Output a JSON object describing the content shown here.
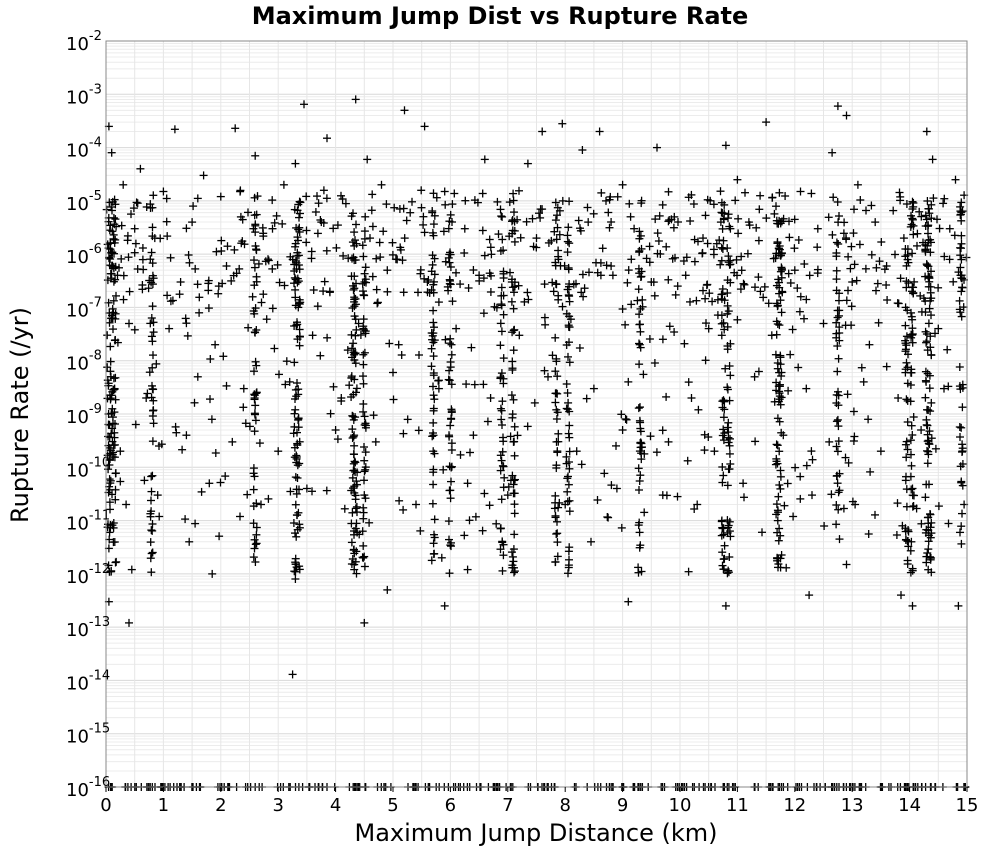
{
  "chart_data": {
    "type": "scatter",
    "title": "Maximum Jump Dist vs Rupture Rate",
    "xlabel": "Maximum Jump Distance (km)",
    "ylabel": "Rupture Rate (/yr)",
    "xlim": [
      0,
      15
    ],
    "ylim": [
      1e-16,
      0.01
    ],
    "yscale": "log",
    "marker": "plus",
    "marker_color": "#000000",
    "grid": true,
    "legend": "none",
    "x_ticks": [
      "0",
      "1",
      "2",
      "3",
      "4",
      "5",
      "6",
      "7",
      "8",
      "9",
      "10",
      "11",
      "12",
      "13",
      "14",
      "15"
    ],
    "y_ticks": [
      {
        "base": "10",
        "exp": "-2"
      },
      {
        "base": "10",
        "exp": "-3"
      },
      {
        "base": "10",
        "exp": "-4"
      },
      {
        "base": "10",
        "exp": "-5"
      },
      {
        "base": "10",
        "exp": "-6"
      },
      {
        "base": "10",
        "exp": "-7"
      },
      {
        "base": "10",
        "exp": "-8"
      },
      {
        "base": "10",
        "exp": "-9"
      },
      {
        "base": "10",
        "exp": "-10"
      },
      {
        "base": "10",
        "exp": "-11"
      },
      {
        "base": "10",
        "exp": "-12"
      },
      {
        "base": "10",
        "exp": "-13"
      },
      {
        "base": "10",
        "exp": "-14"
      },
      {
        "base": "10",
        "exp": "-15"
      },
      {
        "base": "10",
        "exp": "-16"
      }
    ],
    "points": [
      [
        0.05,
        0.00025
      ],
      [
        1.2,
        0.00022
      ],
      [
        2.25,
        0.00023
      ],
      [
        3.45,
        0.00065
      ],
      [
        4.35,
        0.0008
      ],
      [
        5.2,
        0.0005
      ],
      [
        5.55,
        0.00025
      ],
      [
        7.6,
        0.0002
      ],
      [
        7.95,
        0.00028
      ],
      [
        8.6,
        0.0002
      ],
      [
        9.6,
        0.0001
      ],
      [
        11.5,
        0.0003
      ],
      [
        12.75,
        0.0006
      ],
      [
        12.9,
        0.0004
      ],
      [
        14.3,
        0.0002
      ],
      [
        0.1,
        8e-05
      ],
      [
        0.6,
        4e-05
      ],
      [
        1.7,
        3e-05
      ],
      [
        2.6,
        7e-05
      ],
      [
        3.3,
        5e-05
      ],
      [
        3.85,
        0.00015
      ],
      [
        4.55,
        6e-05
      ],
      [
        6.6,
        6e-05
      ],
      [
        7.35,
        5e-05
      ],
      [
        8.3,
        9e-05
      ],
      [
        10.8,
        0.00011
      ],
      [
        12.65,
        8e-05
      ],
      [
        14.4,
        6e-05
      ],
      [
        0.3,
        2e-05
      ],
      [
        1.0,
        1.5e-05
      ],
      [
        2.0,
        1.2e-05
      ],
      [
        3.1,
        2e-05
      ],
      [
        4.8,
        2e-05
      ],
      [
        5.9,
        1.5e-05
      ],
      [
        9.0,
        2e-05
      ],
      [
        11.0,
        2.5e-05
      ],
      [
        12.1,
        1.5e-05
      ],
      [
        13.1,
        2e-05
      ],
      [
        14.8,
        2.5e-05
      ],
      [
        0.5,
        3e-06
      ],
      [
        0.85,
        2e-06
      ],
      [
        1.5,
        4e-06
      ],
      [
        2.35,
        5e-06
      ],
      [
        2.9,
        3e-06
      ],
      [
        3.75,
        4e-06
      ],
      [
        4.6,
        2e-06
      ],
      [
        5.3,
        6e-06
      ],
      [
        6.25,
        3e-06
      ],
      [
        6.9,
        5e-06
      ],
      [
        7.5,
        2e-06
      ],
      [
        8.4,
        4e-06
      ],
      [
        9.2,
        3e-06
      ],
      [
        9.9,
        5e-06
      ],
      [
        10.4,
        2e-06
      ],
      [
        11.2,
        4e-06
      ],
      [
        12.4,
        3e-06
      ],
      [
        13.4,
        4e-06
      ],
      [
        13.9,
        2e-06
      ],
      [
        14.7,
        3e-06
      ],
      [
        0.2,
        4e-07
      ],
      [
        1.3,
        3e-07
      ],
      [
        2.1,
        6e-07
      ],
      [
        3.9,
        2e-07
      ],
      [
        4.9,
        5e-07
      ],
      [
        5.6,
        3e-07
      ],
      [
        6.5,
        4e-07
      ],
      [
        7.8,
        2e-07
      ],
      [
        8.8,
        6e-07
      ],
      [
        9.5,
        3e-07
      ],
      [
        10.1,
        4e-07
      ],
      [
        11.4,
        2e-07
      ],
      [
        12.0,
        5e-07
      ],
      [
        13.0,
        3e-07
      ],
      [
        13.6,
        6e-07
      ],
      [
        14.9,
        2e-07
      ],
      [
        0.4,
        5e-08
      ],
      [
        1.1,
        4e-08
      ],
      [
        1.9,
        2e-08
      ],
      [
        2.8,
        6e-08
      ],
      [
        3.6,
        3e-08
      ],
      [
        4.4,
        5e-08
      ],
      [
        5.1,
        2e-08
      ],
      [
        6.1,
        4e-08
      ],
      [
        7.2,
        3e-08
      ],
      [
        8.1,
        6e-08
      ],
      [
        9.3,
        2e-08
      ],
      [
        10.5,
        4e-08
      ],
      [
        11.6,
        3e-08
      ],
      [
        12.5,
        5e-08
      ],
      [
        13.3,
        2e-08
      ],
      [
        14.5,
        4e-08
      ],
      [
        0.15,
        3e-09
      ],
      [
        0.7,
        2e-09
      ],
      [
        1.6,
        5e-09
      ],
      [
        2.4,
        3e-09
      ],
      [
        3.2,
        4e-09
      ],
      [
        4.1,
        2e-09
      ],
      [
        5.0,
        6e-09
      ],
      [
        5.8,
        3e-09
      ],
      [
        6.7,
        2e-09
      ],
      [
        7.7,
        5e-09
      ],
      [
        8.5,
        3e-09
      ],
      [
        9.1,
        4e-09
      ],
      [
        10.2,
        2e-09
      ],
      [
        11.3,
        5e-09
      ],
      [
        12.2,
        3e-09
      ],
      [
        13.2,
        4e-09
      ],
      [
        13.8,
        2e-09
      ],
      [
        14.6,
        3e-09
      ],
      [
        0.25,
        2e-10
      ],
      [
        1.4,
        4e-10
      ],
      [
        2.2,
        3e-10
      ],
      [
        3.0,
        2e-10
      ],
      [
        4.0,
        5e-10
      ],
      [
        4.7,
        3e-10
      ],
      [
        5.7,
        2e-10
      ],
      [
        6.4,
        4e-10
      ],
      [
        7.1,
        3e-10
      ],
      [
        8.2,
        2e-10
      ],
      [
        9.0,
        5e-10
      ],
      [
        9.8,
        3e-10
      ],
      [
        10.6,
        2e-10
      ],
      [
        11.8,
        4e-10
      ],
      [
        12.6,
        3e-10
      ],
      [
        13.5,
        2e-10
      ],
      [
        14.2,
        5e-10
      ],
      [
        0.35,
        2e-11
      ],
      [
        0.9,
        3e-11
      ],
      [
        1.8,
        5e-11
      ],
      [
        2.7,
        2e-11
      ],
      [
        3.5,
        4e-11
      ],
      [
        4.5,
        3e-11
      ],
      [
        5.4,
        2e-11
      ],
      [
        6.3,
        5e-11
      ],
      [
        7.0,
        3e-11
      ],
      [
        8.0,
        2e-11
      ],
      [
        8.9,
        4e-11
      ],
      [
        9.7,
        3e-11
      ],
      [
        10.3,
        2e-11
      ],
      [
        11.1,
        5e-11
      ],
      [
        12.3,
        3e-11
      ],
      [
        13.05,
        2e-11
      ],
      [
        14.05,
        4e-11
      ],
      [
        14.95,
        2e-11
      ],
      [
        0.05,
        3e-12
      ],
      [
        0.45,
        1.2e-12
      ],
      [
        1.45,
        4e-12
      ],
      [
        1.85,
        1e-12
      ],
      [
        3.3,
        8e-13
      ],
      [
        4.9,
        5e-13
      ],
      [
        5.85,
        2e-12
      ],
      [
        6.3,
        1.2e-12
      ],
      [
        8.45,
        4e-12
      ],
      [
        9.1,
        3e-13
      ],
      [
        10.15,
        1.1e-12
      ],
      [
        10.8,
        2.5e-13
      ],
      [
        11.85,
        1.3e-12
      ],
      [
        12.25,
        4e-13
      ],
      [
        12.9,
        1.5e-12
      ],
      [
        13.85,
        4e-13
      ],
      [
        14.05,
        2.5e-13
      ],
      [
        14.85,
        2.5e-13
      ],
      [
        0.05,
        3e-13
      ],
      [
        0.4,
        1.2e-13
      ],
      [
        4.5,
        1.2e-13
      ],
      [
        5.9,
        2.5e-13
      ],
      [
        3.25,
        1.3e-14
      ]
    ],
    "column_x": [
      0.05,
      0.1,
      0.15,
      0.8,
      2.6,
      3.3,
      3.35,
      4.3,
      4.35,
      4.5,
      5.7,
      6.0,
      6.9,
      7.1,
      7.85,
      8.05,
      9.3,
      10.75,
      10.85,
      11.7,
      11.75,
      12.75,
      13.95,
      14.05,
      14.3,
      14.35,
      14.9
    ],
    "column_range": [
      1e-12,
      1e-05
    ],
    "floor_value": 1e-16
  }
}
